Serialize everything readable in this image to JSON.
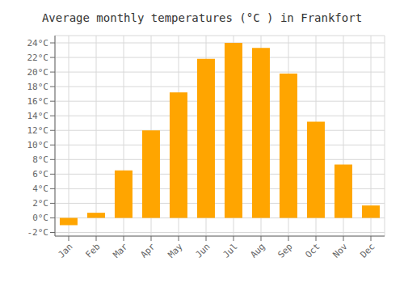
{
  "chart_data": {
    "type": "bar",
    "title": "Average monthly temperatures (°C ) in Frankfort",
    "categories": [
      "Jan",
      "Feb",
      "Mar",
      "Apr",
      "May",
      "Jun",
      "Jul",
      "Aug",
      "Sep",
      "Oct",
      "Nov",
      "Dec"
    ],
    "values": [
      -1.0,
      0.7,
      6.5,
      12.0,
      17.2,
      21.8,
      24.0,
      23.3,
      19.8,
      13.2,
      7.3,
      1.7
    ],
    "color": "#FFA500",
    "ylim": [
      -2.5,
      25
    ],
    "yticks": [
      {
        "value": -2,
        "label": "-2°C"
      },
      {
        "value": 0,
        "label": "0°C"
      },
      {
        "value": 2,
        "label": "2°C"
      },
      {
        "value": 4,
        "label": "4°C"
      },
      {
        "value": 6,
        "label": "6°C"
      },
      {
        "value": 8,
        "label": "8°C"
      },
      {
        "value": 10,
        "label": "10°C"
      },
      {
        "value": 12,
        "label": "12°C"
      },
      {
        "value": 14,
        "label": "14°C"
      },
      {
        "value": 16,
        "label": "16°C"
      },
      {
        "value": 18,
        "label": "18°C"
      },
      {
        "value": 20,
        "label": "20°C"
      },
      {
        "value": 22,
        "label": "22°C"
      },
      {
        "value": 24,
        "label": "24°C"
      }
    ],
    "grid": true
  }
}
